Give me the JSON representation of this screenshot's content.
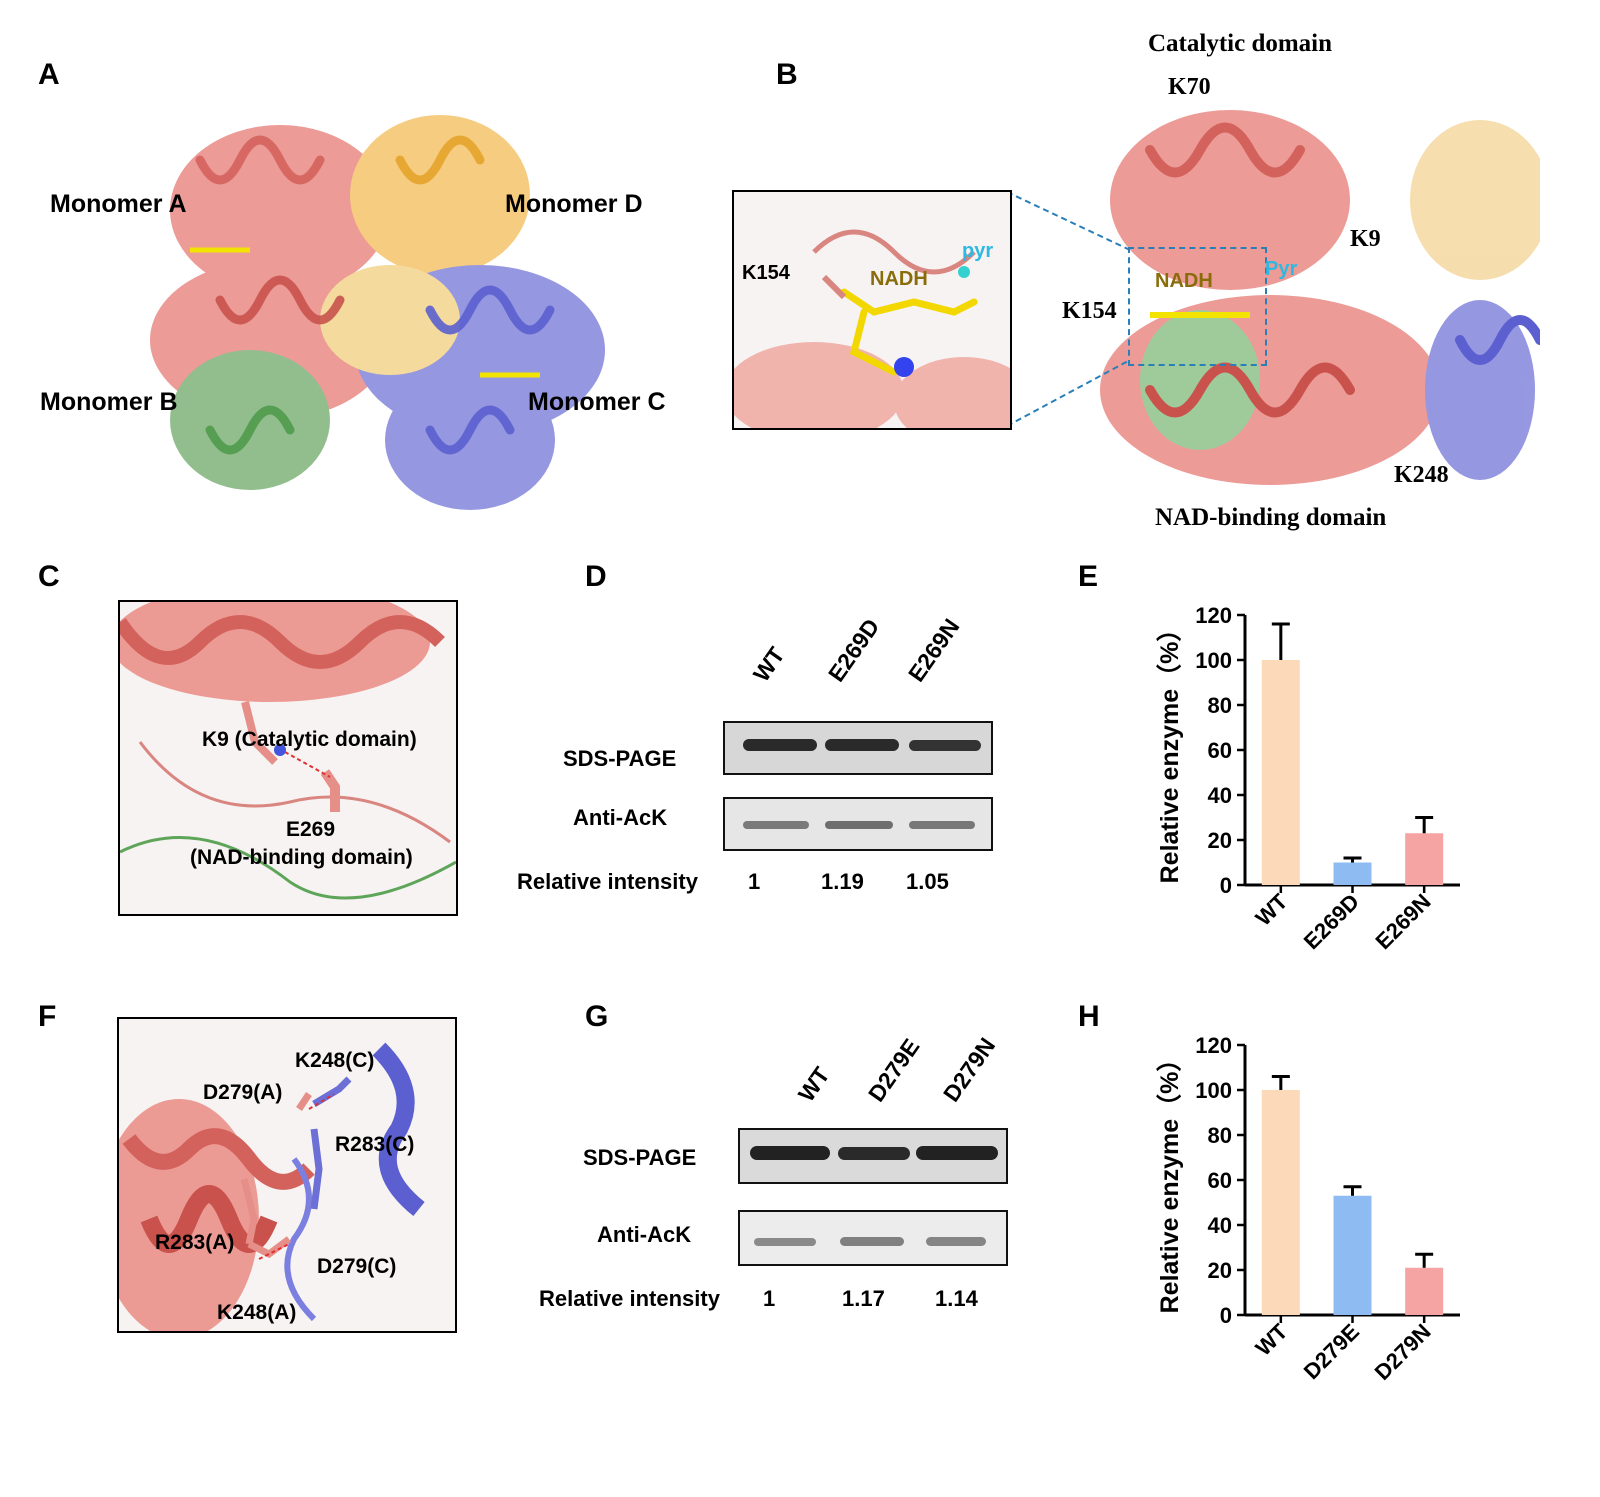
{
  "panels": {
    "A": "A",
    "B": "B",
    "C": "C",
    "D": "D",
    "E": "E",
    "F": "F",
    "G": "G",
    "H": "H"
  },
  "panelA": {
    "monomer_a": "Monomer A",
    "monomer_b": "Monomer B",
    "monomer_c": "Monomer C",
    "monomer_d": "Monomer D",
    "colors": {
      "a": "#f2b38e",
      "b": "#2bab55",
      "c": "#7b7fe0",
      "d": "#f2c12e"
    }
  },
  "panelB": {
    "catalytic_domain": "Catalytic domain",
    "nad_binding_domain": "NAD-binding domain",
    "k70": "K70",
    "k9": "K9",
    "k154": "K154",
    "k248": "K248",
    "nadh": "NADH",
    "pyr": "Pyr",
    "inset": {
      "k154": "K154",
      "nadh": "NADH",
      "pyr": "pyr"
    }
  },
  "panelC": {
    "k9": "K9 (Catalytic domain)",
    "e269": "E269",
    "nad_domain": "(NAD-binding domain)"
  },
  "panelD": {
    "lanes": [
      "WT",
      "E269D",
      "E269N"
    ],
    "row_sds": "SDS-PAGE",
    "row_ack": "Anti-AcK",
    "intensity_label": "Relative intensity",
    "intensities": [
      "1",
      "1.19",
      "1.05"
    ]
  },
  "panelF": {
    "k248c": "K248(C)",
    "d279a": "D279(A)",
    "r283c": "R283(C)",
    "r283a": "R283(A)",
    "d279c": "D279(C)",
    "k248a": "K248(A)"
  },
  "panelG": {
    "lanes": [
      "WT",
      "D279E",
      "D279N"
    ],
    "row_sds": "SDS-PAGE",
    "row_ack": "Anti-AcK",
    "intensity_label": "Relative intensity",
    "intensities": [
      "1",
      "1.17",
      "1.14"
    ]
  },
  "chart_data": [
    {
      "type": "bar",
      "panel": "E",
      "categories": [
        "WT",
        "E269D",
        "E269N"
      ],
      "values": [
        100,
        10,
        23
      ],
      "errors": [
        16,
        2,
        7
      ],
      "colors": [
        "#fcd9b8",
        "#8ebcf2",
        "#f5a3a3"
      ],
      "ylabel": "Relative enzyme（%）",
      "ylim": [
        0,
        120
      ],
      "yticks": [
        "0",
        "20",
        "40",
        "60",
        "80",
        "100",
        "120"
      ]
    },
    {
      "type": "bar",
      "panel": "H",
      "categories": [
        "WT",
        "D279E",
        "D279N"
      ],
      "values": [
        100,
        53,
        21
      ],
      "errors": [
        6,
        4,
        6
      ],
      "colors": [
        "#fcd9b8",
        "#8ebcf2",
        "#f5a3a3"
      ],
      "ylabel": "Relative enzyme（%）",
      "ylim": [
        0,
        120
      ],
      "yticks": [
        "0",
        "20",
        "40",
        "60",
        "80",
        "100",
        "120"
      ]
    }
  ]
}
